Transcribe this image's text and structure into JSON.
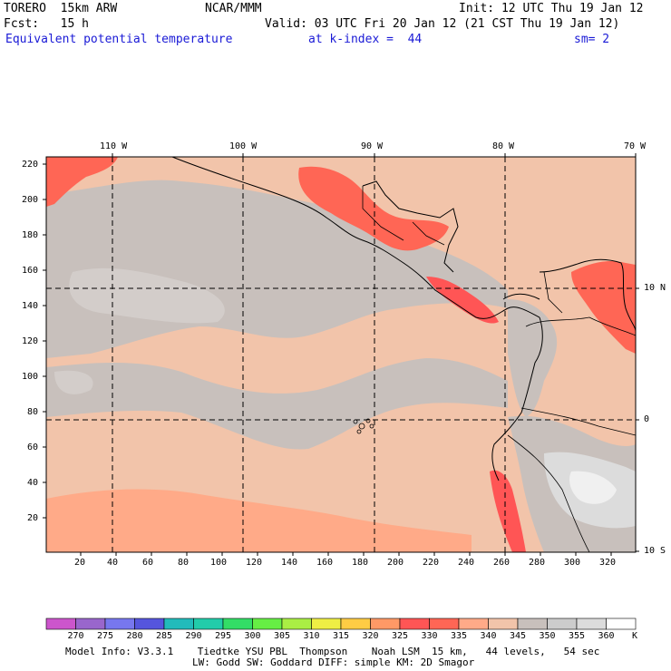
{
  "header": {
    "model": "TORERO  15km ARW",
    "org": "NCAR/MMM",
    "init": "Init: 12 UTC Thu 19 Jan 12",
    "fcst": "Fcst:   15 h",
    "valid": "Valid: 03 UTC Fri 20 Jan 12 (21 CST Thu 19 Jan 12)",
    "field": "Equivalent potential temperature",
    "level": "at k-index =  44",
    "smooth": "sm= 2"
  },
  "map": {
    "top_lon_labels": [
      "110 W",
      "100 W",
      "90 W",
      "80 W",
      "70 W"
    ],
    "right_lat_labels": [
      "10 N",
      "0",
      "10 S"
    ],
    "left_grid_labels": [
      "220",
      "200",
      "180",
      "160",
      "140",
      "120",
      "100",
      "80",
      "60",
      "40",
      "20"
    ],
    "bottom_grid_labels": [
      "20",
      "40",
      "60",
      "80",
      "100",
      "120",
      "140",
      "160",
      "180",
      "200",
      "220",
      "240",
      "260",
      "280",
      "300",
      "320"
    ]
  },
  "colorbar": {
    "labels": [
      "270",
      "275",
      "280",
      "285",
      "290",
      "295",
      "300",
      "305",
      "310",
      "315",
      "320",
      "325",
      "330",
      "335",
      "340",
      "345",
      "350",
      "355",
      "360"
    ],
    "unit": "K",
    "colors": [
      "#cc55cc",
      "#9966cc",
      "#7777ee",
      "#5555dd",
      "#22bbbb",
      "#22ccaa",
      "#33dd66",
      "#66ee44",
      "#aaee44",
      "#eeee44",
      "#ffcc44",
      "#ff9966",
      "#ff5555",
      "#ff6655",
      "#ffaa88",
      "#f2c4aa",
      "#c8c0bc",
      "#cccccc",
      "#dcdcdc",
      "#ffffff"
    ]
  },
  "footer": {
    "line1": "Model Info: V3.3.1    Tiedtke YSU PBL  Thompson    Noah LSM  15 km,   44 levels,   54 sec",
    "line2": "LW: Godd SW: Goddard DIFF: simple KM: 2D Smagor"
  }
}
